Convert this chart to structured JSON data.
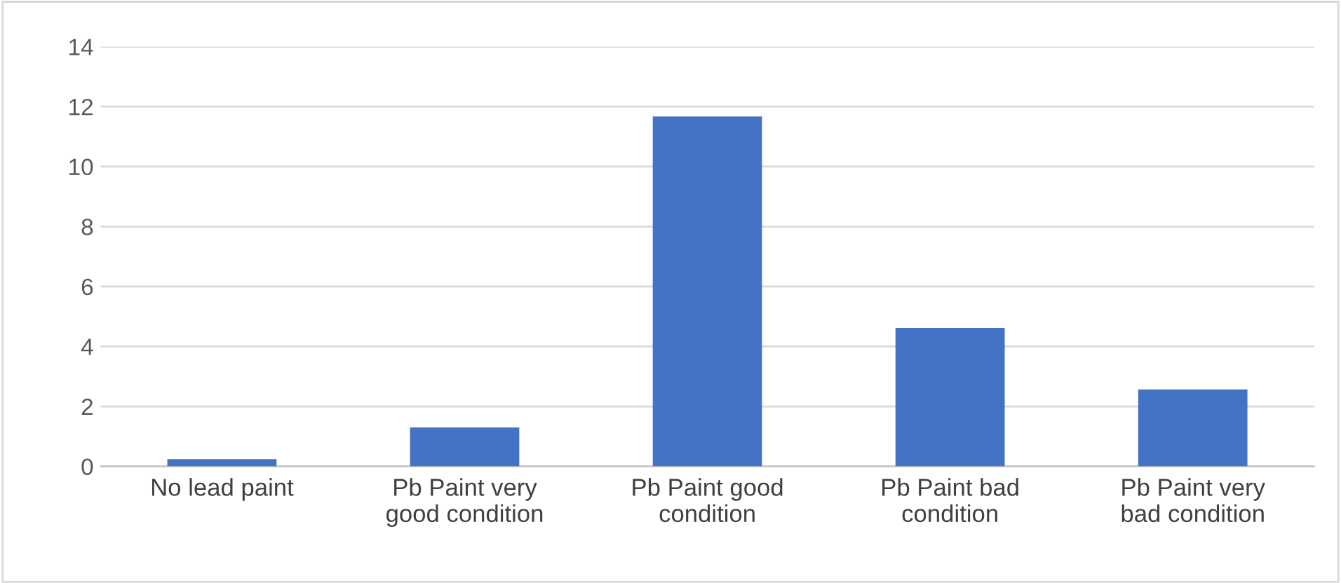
{
  "chart_data": {
    "type": "bar",
    "categories": [
      "No lead paint",
      "Pb Paint very good condition",
      "Pb Paint good condition",
      "Pb Paint bad condition",
      "Pb Paint very bad condition"
    ],
    "values": [
      0.24,
      1.3,
      11.67,
      4.62,
      2.57
    ],
    "color": "#4472c4",
    "ylim": [
      0,
      14
    ],
    "yticks": [
      0,
      2,
      4,
      6,
      8,
      10,
      12,
      14
    ],
    "grid": "y",
    "legend": false
  }
}
